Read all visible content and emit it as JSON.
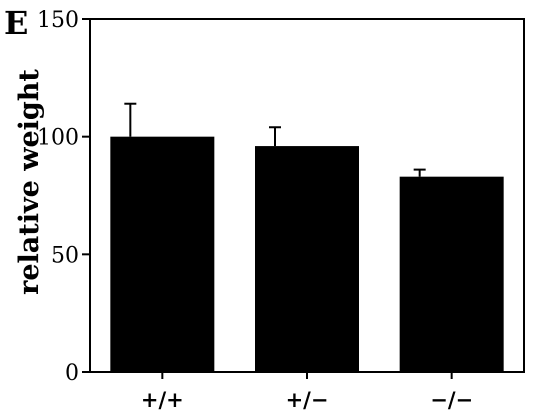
{
  "panel_label": "E",
  "chart_data": {
    "type": "bar",
    "categories": [
      "+/+",
      "+/−",
      "−/−"
    ],
    "values": [
      100,
      96,
      83
    ],
    "error": [
      14,
      8,
      3
    ],
    "ylabel": "relative weight",
    "xlabel": "",
    "ylim": [
      0,
      150
    ],
    "yticks": [
      0,
      50,
      100,
      150
    ],
    "grid": false,
    "bar_color": "#000000"
  }
}
